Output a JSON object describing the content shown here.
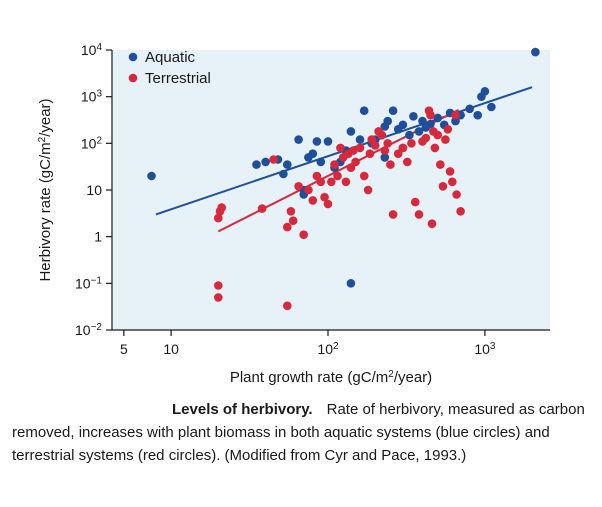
{
  "chart_data": {
    "type": "scatter",
    "x_scale": "log",
    "y_scale": "log",
    "xlim": [
      4.2,
      2600
    ],
    "ylim": [
      0.01,
      10000
    ],
    "xlabel": "Plant growth rate (gC/m2/year)",
    "ylabel": "Herbivory rate (gC/m2/year)",
    "x_ticks": [
      {
        "value": 5,
        "label": "5"
      },
      {
        "value": 10,
        "label": "10"
      },
      {
        "value": 100,
        "base": "10",
        "exp": "2"
      },
      {
        "value": 1000,
        "base": "10",
        "exp": "3"
      }
    ],
    "y_ticks": [
      {
        "value": 10000,
        "base": "10",
        "exp": "4"
      },
      {
        "value": 1000,
        "base": "10",
        "exp": "3"
      },
      {
        "value": 100,
        "base": "10",
        "exp": "2"
      },
      {
        "value": 10,
        "label": "10"
      },
      {
        "value": 1,
        "label": "1"
      },
      {
        "value": 0.1,
        "base": "10",
        "exp": "−1"
      },
      {
        "value": 0.01,
        "base": "10",
        "exp": "−2"
      }
    ],
    "legend": "top-left",
    "series": [
      {
        "name": "Aquatic",
        "color": "#1f4e9a",
        "fit": [
          [
            8,
            3
          ],
          [
            2000,
            1600
          ]
        ],
        "points": [
          [
            2100,
            9000
          ],
          [
            1000,
            1300
          ],
          [
            1100,
            600
          ],
          [
            900,
            400
          ],
          [
            950,
            1000
          ],
          [
            800,
            550
          ],
          [
            700,
            400
          ],
          [
            650,
            300
          ],
          [
            600,
            450
          ],
          [
            550,
            250
          ],
          [
            500,
            350
          ],
          [
            450,
            260
          ],
          [
            420,
            220
          ],
          [
            400,
            300
          ],
          [
            380,
            180
          ],
          [
            350,
            380
          ],
          [
            330,
            150
          ],
          [
            300,
            250
          ],
          [
            280,
            200
          ],
          [
            260,
            500
          ],
          [
            240,
            300
          ],
          [
            230,
            230
          ],
          [
            220,
            150
          ],
          [
            200,
            120
          ],
          [
            190,
            100
          ],
          [
            170,
            500
          ],
          [
            160,
            120
          ],
          [
            140,
            180
          ],
          [
            130,
            70
          ],
          [
            120,
            40
          ],
          [
            110,
            30
          ],
          [
            100,
            110
          ],
          [
            90,
            40
          ],
          [
            85,
            110
          ],
          [
            80,
            60
          ],
          [
            75,
            50
          ],
          [
            70,
            8
          ],
          [
            65,
            120
          ],
          [
            55,
            35
          ],
          [
            52,
            22
          ],
          [
            48,
            45
          ],
          [
            40,
            40
          ],
          [
            35,
            35
          ],
          [
            7.5,
            20
          ],
          [
            140,
            0.1
          ],
          [
            70,
            10
          ],
          [
            300,
            80
          ],
          [
            230,
            50
          ]
        ]
      },
      {
        "name": "Terrestrial",
        "color": "#d7283c",
        "fit": [
          [
            20,
            1.3
          ],
          [
            680,
            520
          ]
        ],
        "points": [
          [
            20,
            2.5
          ],
          [
            20.5,
            3.5
          ],
          [
            21,
            4.2
          ],
          [
            20,
            0.05
          ],
          [
            20,
            0.09
          ],
          [
            55,
            0.033
          ],
          [
            38,
            4
          ],
          [
            45,
            45
          ],
          [
            55,
            1.6
          ],
          [
            58,
            3.5
          ],
          [
            60,
            2.2
          ],
          [
            70,
            1.1
          ],
          [
            65,
            12
          ],
          [
            75,
            10
          ],
          [
            80,
            6
          ],
          [
            85,
            20
          ],
          [
            90,
            15
          ],
          [
            95,
            7
          ],
          [
            100,
            5
          ],
          [
            105,
            15
          ],
          [
            110,
            35
          ],
          [
            115,
            20
          ],
          [
            120,
            80
          ],
          [
            125,
            50
          ],
          [
            130,
            15
          ],
          [
            135,
            60
          ],
          [
            140,
            30
          ],
          [
            145,
            70
          ],
          [
            150,
            40
          ],
          [
            160,
            80
          ],
          [
            170,
            20
          ],
          [
            180,
            10
          ],
          [
            185,
            60
          ],
          [
            190,
            120
          ],
          [
            200,
            90
          ],
          [
            210,
            180
          ],
          [
            220,
            150
          ],
          [
            230,
            70
          ],
          [
            240,
            100
          ],
          [
            250,
            35
          ],
          [
            260,
            3
          ],
          [
            280,
            60
          ],
          [
            300,
            80
          ],
          [
            320,
            40
          ],
          [
            340,
            100
          ],
          [
            360,
            5.5
          ],
          [
            380,
            3
          ],
          [
            400,
            110
          ],
          [
            420,
            130
          ],
          [
            440,
            500
          ],
          [
            450,
            400
          ],
          [
            460,
            1.9
          ],
          [
            470,
            180
          ],
          [
            480,
            80
          ],
          [
            500,
            150
          ],
          [
            520,
            35
          ],
          [
            540,
            12
          ],
          [
            560,
            120
          ],
          [
            580,
            200
          ],
          [
            600,
            25
          ],
          [
            620,
            15
          ],
          [
            650,
            400
          ],
          [
            700,
            3.5
          ],
          [
            660,
            8
          ]
        ]
      }
    ]
  },
  "caption": {
    "title": "Levels of herbivory.",
    "text": "Rate of herbivory, measured as carbon removed, increases with plant biomass in both aquatic systems (blue circles) and terrestrial systems (red circles). (Modified from Cyr and Pace, 1993.)"
  }
}
